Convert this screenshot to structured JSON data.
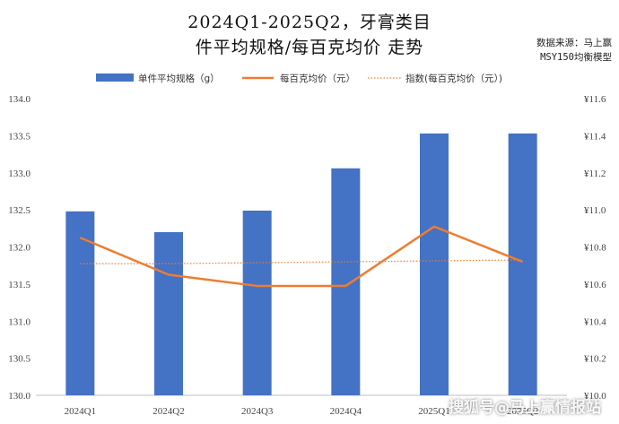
{
  "chart_data": {
    "type": "bar+line",
    "title_line1": "2024Q1-2025Q2，牙膏类目",
    "title_line2": "件平均规格/每百克均价 走势",
    "categories": [
      "2024Q1",
      "2024Q2",
      "2024Q3",
      "2024Q4",
      "2025Q1",
      "2025Q2"
    ],
    "series": [
      {
        "name": "单件平均规格（g）",
        "type": "bar",
        "axis": "left",
        "color": "#4472C4",
        "values": [
          132.48,
          132.2,
          132.49,
          133.06,
          133.53,
          133.53
        ]
      },
      {
        "name": "每百克均价（元）",
        "type": "line",
        "axis": "right",
        "color": "#ED7D31",
        "values": [
          10.85,
          10.65,
          10.59,
          10.59,
          10.91,
          10.72
        ]
      },
      {
        "name": "指数(每百克均价（元）)",
        "type": "dotted-trend",
        "axis": "right",
        "color": "#ED7D31",
        "values": [
          10.71,
          10.71,
          10.715,
          10.72,
          10.725,
          10.73
        ]
      }
    ],
    "y_left": {
      "min": 130.0,
      "max": 134.0,
      "ticks": [
        "130.0",
        "130.5",
        "131.0",
        "131.5",
        "132.0",
        "132.5",
        "133.0",
        "133.5",
        "134.0"
      ]
    },
    "y_right": {
      "min": 10.0,
      "max": 11.6,
      "ticks": [
        "¥10.0",
        "¥10.2",
        "¥10.4",
        "¥10.6",
        "¥10.8",
        "¥11.0",
        "¥11.2",
        "¥11.4",
        "¥11.6"
      ]
    },
    "grid": false,
    "legend": "top"
  },
  "source": {
    "line1": "数据来源：马上赢",
    "line2": "MSY150均衡模型"
  },
  "watermark": "搜狐号@马上赢情报站"
}
